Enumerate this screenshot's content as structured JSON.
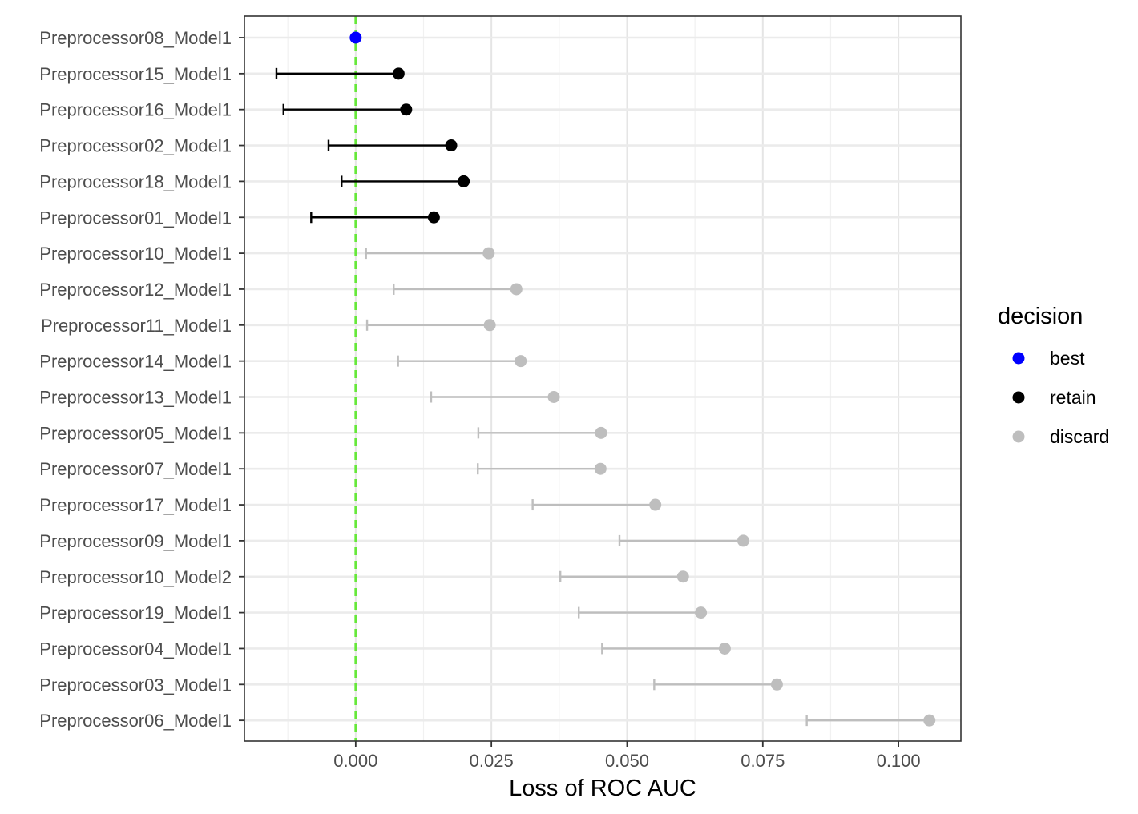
{
  "chart_data": {
    "type": "scatter",
    "title": "",
    "xlabel": "Loss of ROC AUC",
    "ylabel": "",
    "xlim": [
      -0.0205,
      0.1115
    ],
    "x_ticks": [
      0.0,
      0.025,
      0.05,
      0.075,
      0.1
    ],
    "x_tick_labels": [
      "0.000",
      "0.025",
      "0.050",
      "0.075",
      "0.100"
    ],
    "reference_line": {
      "x": 0.0,
      "color": "#66e83a",
      "style": "dashed"
    },
    "grid": true,
    "legend": {
      "title": "decision",
      "position": "right",
      "entries": [
        {
          "key": "best",
          "label": "best",
          "color": "#0000ff"
        },
        {
          "key": "retain",
          "label": "retain",
          "color": "#000000"
        },
        {
          "key": "discard",
          "label": "discard",
          "color": "#bebebe"
        }
      ]
    },
    "rows": [
      {
        "label": "Preprocessor08_Model1",
        "estimate": 0.0,
        "lower": null,
        "decision": "best"
      },
      {
        "label": "Preprocessor15_Model1",
        "estimate": 0.0079,
        "lower": -0.0146,
        "decision": "retain"
      },
      {
        "label": "Preprocessor16_Model1",
        "estimate": 0.0093,
        "lower": -0.0133,
        "decision": "retain"
      },
      {
        "label": "Preprocessor02_Model1",
        "estimate": 0.0176,
        "lower": -0.005,
        "decision": "retain"
      },
      {
        "label": "Preprocessor18_Model1",
        "estimate": 0.0199,
        "lower": -0.0026,
        "decision": "retain"
      },
      {
        "label": "Preprocessor01_Model1",
        "estimate": 0.0144,
        "lower": -0.0082,
        "decision": "retain"
      },
      {
        "label": "Preprocessor10_Model1",
        "estimate": 0.0245,
        "lower": 0.0019,
        "decision": "discard"
      },
      {
        "label": "Preprocessor12_Model1",
        "estimate": 0.0296,
        "lower": 0.007,
        "decision": "discard"
      },
      {
        "label": "Preprocessor11_Model1",
        "estimate": 0.0247,
        "lower": 0.0021,
        "decision": "discard"
      },
      {
        "label": "Preprocessor14_Model1",
        "estimate": 0.0304,
        "lower": 0.0078,
        "decision": "discard"
      },
      {
        "label": "Preprocessor13_Model1",
        "estimate": 0.0365,
        "lower": 0.0139,
        "decision": "discard"
      },
      {
        "label": "Preprocessor05_Model1",
        "estimate": 0.0452,
        "lower": 0.0226,
        "decision": "discard"
      },
      {
        "label": "Preprocessor07_Model1",
        "estimate": 0.0451,
        "lower": 0.0225,
        "decision": "discard"
      },
      {
        "label": "Preprocessor17_Model1",
        "estimate": 0.0552,
        "lower": 0.0326,
        "decision": "discard"
      },
      {
        "label": "Preprocessor09_Model1",
        "estimate": 0.0714,
        "lower": 0.0486,
        "decision": "discard"
      },
      {
        "label": "Preprocessor10_Model2",
        "estimate": 0.0603,
        "lower": 0.0377,
        "decision": "discard"
      },
      {
        "label": "Preprocessor19_Model1",
        "estimate": 0.0636,
        "lower": 0.0411,
        "decision": "discard"
      },
      {
        "label": "Preprocessor04_Model1",
        "estimate": 0.068,
        "lower": 0.0454,
        "decision": "discard"
      },
      {
        "label": "Preprocessor03_Model1",
        "estimate": 0.0776,
        "lower": 0.055,
        "decision": "discard"
      },
      {
        "label": "Preprocessor06_Model1",
        "estimate": 0.1057,
        "lower": 0.0831,
        "decision": "discard"
      }
    ]
  }
}
